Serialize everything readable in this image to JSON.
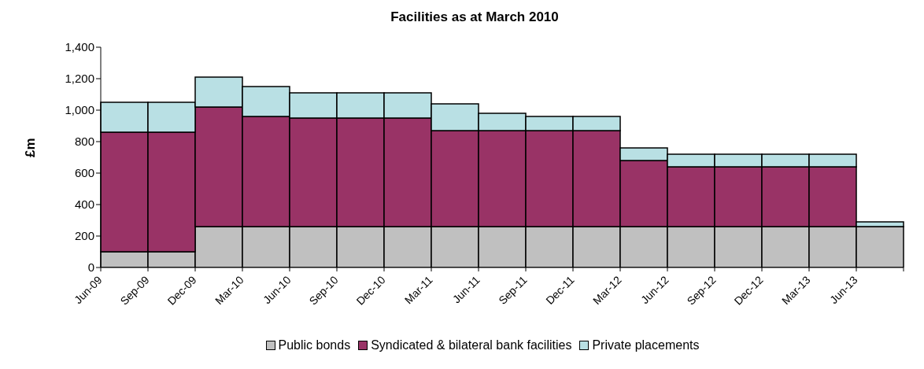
{
  "chart_data": {
    "type": "bar",
    "title": "Facilities as at March 2010",
    "ylabel": "£m",
    "stacked": true,
    "legend": "bottom",
    "grid": false,
    "categories": [
      "Jun-09",
      "Sep-09",
      "Dec-09",
      "Mar-10",
      "Jun-10",
      "Sep-10",
      "Dec-10",
      "Mar-11",
      "Jun-11",
      "Sep-11",
      "Dec-11",
      "Mar-12",
      "Jun-12",
      "Sep-12",
      "Dec-12",
      "Mar-13",
      "Jun-13"
    ],
    "ylim": [
      0,
      1400
    ],
    "yticks": [
      {
        "value": 0,
        "label": "0"
      },
      {
        "value": 200,
        "label": "200"
      },
      {
        "value": 400,
        "label": "400"
      },
      {
        "value": 600,
        "label": "600"
      },
      {
        "value": 800,
        "label": "800"
      },
      {
        "value": 1000,
        "label": "1,000"
      },
      {
        "value": 1200,
        "label": "1,200"
      },
      {
        "value": 1400,
        "label": "1,400"
      }
    ],
    "series": [
      {
        "name": "Public bonds",
        "color": "#c0c0c0",
        "values": [
          100,
          100,
          260,
          260,
          260,
          260,
          260,
          260,
          260,
          260,
          260,
          260,
          260,
          260,
          260,
          260,
          260
        ]
      },
      {
        "name": "Syndicated & bilateral bank facilities",
        "color": "#993366",
        "values": [
          760,
          760,
          760,
          700,
          690,
          690,
          690,
          610,
          610,
          610,
          610,
          420,
          380,
          380,
          380,
          380,
          0
        ]
      },
      {
        "name": "Private placements",
        "color": "#b9e0e4",
        "values": [
          190,
          190,
          190,
          190,
          160,
          160,
          160,
          170,
          110,
          90,
          90,
          80,
          80,
          80,
          80,
          80,
          30
        ]
      }
    ]
  }
}
